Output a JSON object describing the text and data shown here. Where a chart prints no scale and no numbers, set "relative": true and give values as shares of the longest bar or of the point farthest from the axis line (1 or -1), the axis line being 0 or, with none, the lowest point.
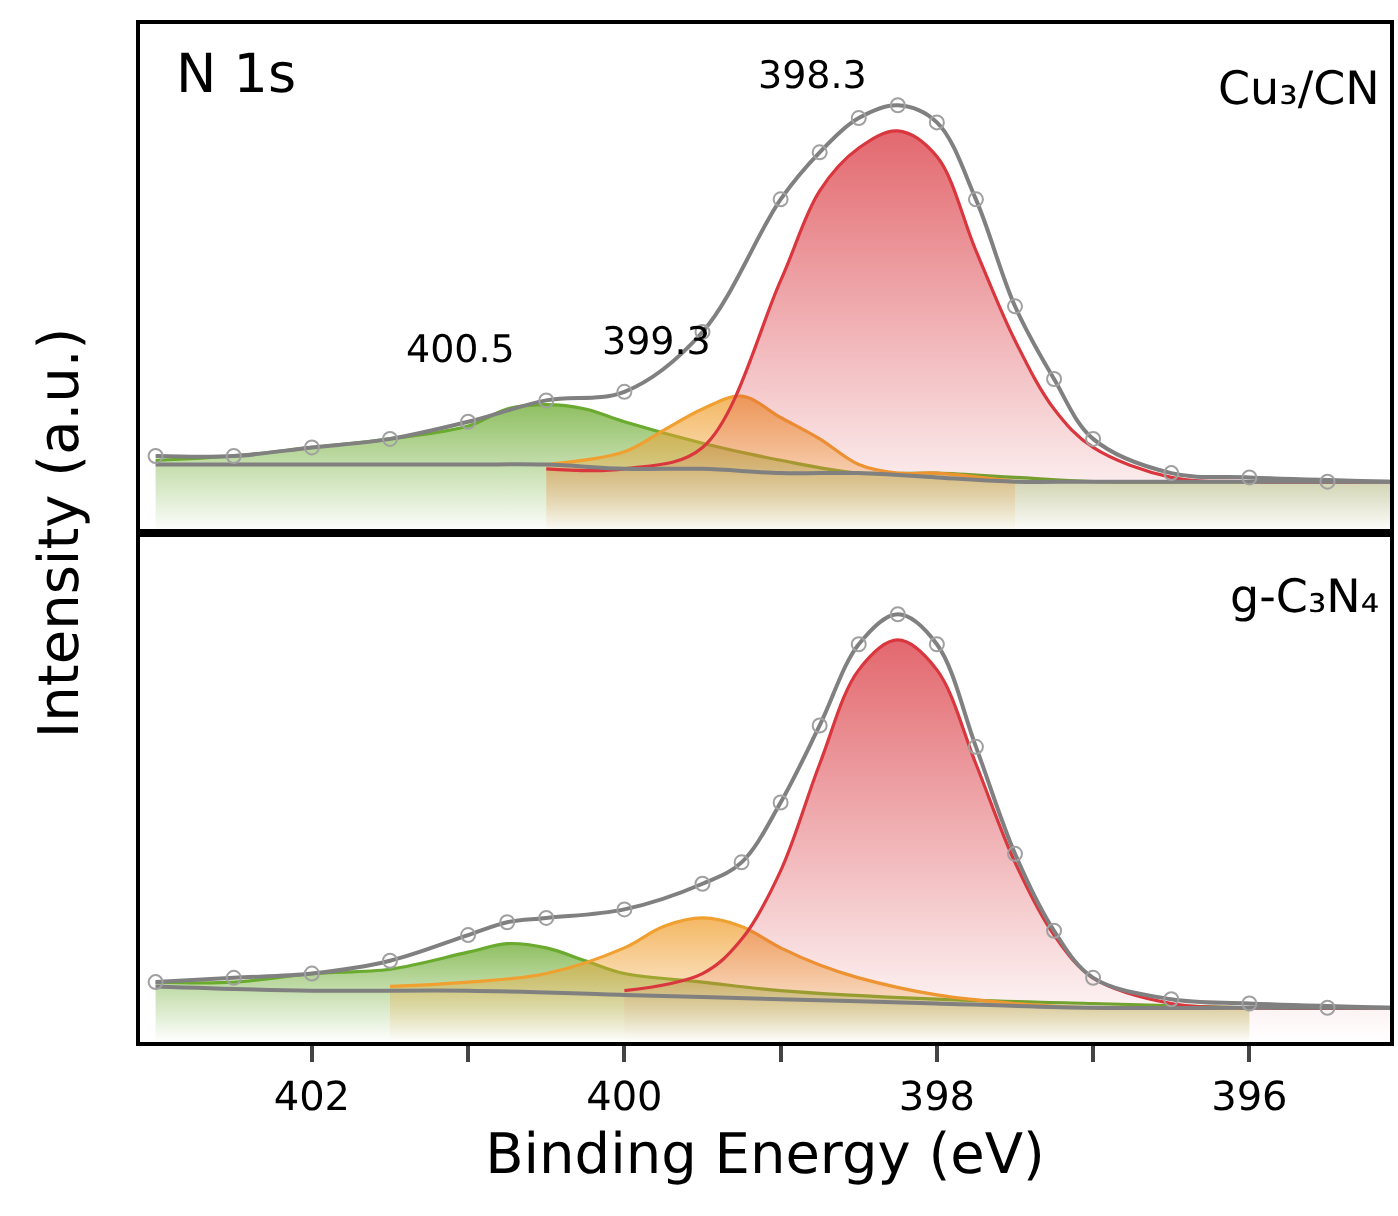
{
  "chart_data": [
    {
      "type": "line",
      "title": "N 1s",
      "ylabel": "Intensity (a.u.)",
      "relative": true,
      "xlim": [
        403.1,
        395.1
      ],
      "tick_labels": false,
      "grid": false,
      "annotations": [
        "Cu₃/CN",
        {
          "text": "398.3",
          "x": 398.25,
          "y": 0.94
        },
        {
          "text": "399.3",
          "x": 399.25,
          "y": 0.32
        },
        {
          "text": "400.5",
          "x": 400.5,
          "y": 0.3
        }
      ],
      "series": [
        {
          "type": "area",
          "color": "#6aaa2e",
          "x": [
            403,
            402.5,
            402,
            401.5,
            401,
            400.75,
            400.5,
            400.25,
            400,
            399.5,
            399,
            398.5,
            398,
            397.5,
            397,
            396,
            395.1
          ],
          "values": [
            0.17,
            0.18,
            0.2,
            0.22,
            0.25,
            0.29,
            0.3,
            0.29,
            0.26,
            0.21,
            0.17,
            0.14,
            0.14,
            0.13,
            0.12,
            0.12,
            0.12
          ]
        },
        {
          "type": "area",
          "color": "#f0a030",
          "x": [
            400.5,
            400,
            399.75,
            399.5,
            399.25,
            399,
            398.75,
            398.5,
            398.25,
            398,
            397.5
          ],
          "values": [
            0.16,
            0.19,
            0.24,
            0.29,
            0.32,
            0.27,
            0.22,
            0.16,
            0.14,
            0.14,
            0.12
          ]
        },
        {
          "type": "area",
          "color": "#d9363e",
          "x": [
            400.5,
            400,
            399.5,
            399,
            398.75,
            398.5,
            398.25,
            398,
            397.75,
            397.5,
            397.25,
            397,
            396.5,
            396,
            395.1
          ],
          "values": [
            0.15,
            0.15,
            0.2,
            0.59,
            0.8,
            0.9,
            0.94,
            0.88,
            0.66,
            0.45,
            0.29,
            0.2,
            0.13,
            0.12,
            0.12
          ]
        },
        {
          "type": "line",
          "color": "#808080",
          "x": [
            403,
            402,
            401,
            400.5,
            400,
            399.5,
            399,
            398.5,
            398,
            397.5,
            397,
            395.1
          ],
          "values": [
            0.16,
            0.16,
            0.16,
            0.16,
            0.15,
            0.15,
            0.14,
            0.14,
            0.13,
            0.12,
            0.12,
            0.12
          ]
        },
        {
          "type": "line",
          "color": "#808080",
          "x": [
            403,
            402.5,
            402,
            401.5,
            401,
            400.5,
            400,
            399.5,
            399,
            398.75,
            398.5,
            398.25,
            398,
            397.75,
            397.5,
            397.25,
            397,
            396.5,
            396,
            395.1
          ],
          "values": [
            0.18,
            0.18,
            0.2,
            0.22,
            0.26,
            0.31,
            0.33,
            0.47,
            0.78,
            0.89,
            0.97,
            1.0,
            0.96,
            0.78,
            0.53,
            0.36,
            0.22,
            0.14,
            0.13,
            0.12
          ]
        },
        {
          "type": "scatter",
          "color": "#a0a0a0",
          "x": [
            403,
            402.5,
            402,
            401.5,
            401,
            400.5,
            400,
            399.5,
            399,
            398.75,
            398.5,
            398.25,
            398,
            397.75,
            397.5,
            397.25,
            397,
            396.5,
            396,
            395.5
          ],
          "values": [
            0.18,
            0.18,
            0.2,
            0.22,
            0.26,
            0.31,
            0.33,
            0.47,
            0.78,
            0.89,
            0.97,
            1.0,
            0.96,
            0.78,
            0.53,
            0.36,
            0.22,
            0.14,
            0.13,
            0.12
          ]
        }
      ]
    },
    {
      "type": "line",
      "xlabel": "Binding Energy (eV)",
      "relative": true,
      "xlim": [
        403.1,
        395.1
      ],
      "tick_labels": "x",
      "grid": false,
      "xticks": [
        402,
        400,
        398,
        396,
        {
          "value": 401,
          "label": null
        },
        {
          "value": 399,
          "label": null
        },
        {
          "value": 397,
          "label": null
        }
      ],
      "annotations": [
        "g-C₃N₄"
      ],
      "series": [
        {
          "type": "area",
          "color": "#6aaa2e",
          "x": [
            403,
            402.5,
            402,
            401.5,
            401,
            400.75,
            400.5,
            400.25,
            400,
            399.5,
            399,
            398,
            397,
            396
          ],
          "values": [
            0.14,
            0.14,
            0.16,
            0.17,
            0.21,
            0.23,
            0.22,
            0.19,
            0.16,
            0.14,
            0.12,
            0.1,
            0.09,
            0.08
          ]
        },
        {
          "type": "area",
          "color": "#f0a030",
          "x": [
            401.5,
            401,
            400.5,
            400,
            399.75,
            399.5,
            399.25,
            399,
            398.75,
            398.5,
            398,
            397.5,
            397,
            396
          ],
          "values": [
            0.13,
            0.14,
            0.16,
            0.22,
            0.27,
            0.29,
            0.27,
            0.22,
            0.18,
            0.15,
            0.11,
            0.09,
            0.08,
            0.08
          ]
        },
        {
          "type": "area",
          "color": "#d9363e",
          "x": [
            400,
            399.5,
            399.25,
            399,
            398.75,
            398.5,
            398.25,
            398,
            397.75,
            397.5,
            397.25,
            397,
            396.5,
            396,
            395.1
          ],
          "values": [
            0.12,
            0.16,
            0.24,
            0.4,
            0.65,
            0.87,
            0.94,
            0.87,
            0.65,
            0.42,
            0.25,
            0.15,
            0.09,
            0.08,
            0.08
          ]
        },
        {
          "type": "line",
          "color": "#808080",
          "x": [
            403,
            402,
            401,
            400,
            399,
            398,
            397,
            396,
            395.1
          ],
          "values": [
            0.13,
            0.12,
            0.12,
            0.11,
            0.1,
            0.09,
            0.08,
            0.08,
            0.08
          ]
        },
        {
          "type": "line",
          "color": "#808080",
          "x": [
            403,
            402.5,
            402,
            401.5,
            401,
            400.75,
            400.5,
            400,
            399.5,
            399.25,
            399,
            398.75,
            398.5,
            398.25,
            398,
            397.75,
            397.5,
            397.25,
            397,
            396.5,
            396,
            395.1
          ],
          "values": [
            0.14,
            0.15,
            0.16,
            0.19,
            0.25,
            0.28,
            0.29,
            0.31,
            0.37,
            0.42,
            0.56,
            0.74,
            0.93,
            1.0,
            0.93,
            0.69,
            0.44,
            0.26,
            0.15,
            0.1,
            0.09,
            0.08
          ]
        },
        {
          "type": "scatter",
          "color": "#a0a0a0",
          "x": [
            403,
            402.5,
            402,
            401.5,
            401,
            400.75,
            400.5,
            400,
            399.5,
            399.25,
            399,
            398.75,
            398.5,
            398.25,
            398,
            397.75,
            397.5,
            397.25,
            397,
            396.5,
            396,
            395.5
          ],
          "values": [
            0.14,
            0.15,
            0.16,
            0.19,
            0.25,
            0.28,
            0.29,
            0.31,
            0.37,
            0.42,
            0.56,
            0.74,
            0.93,
            1.0,
            0.93,
            0.69,
            0.44,
            0.26,
            0.15,
            0.1,
            0.09,
            0.08
          ]
        }
      ]
    }
  ]
}
